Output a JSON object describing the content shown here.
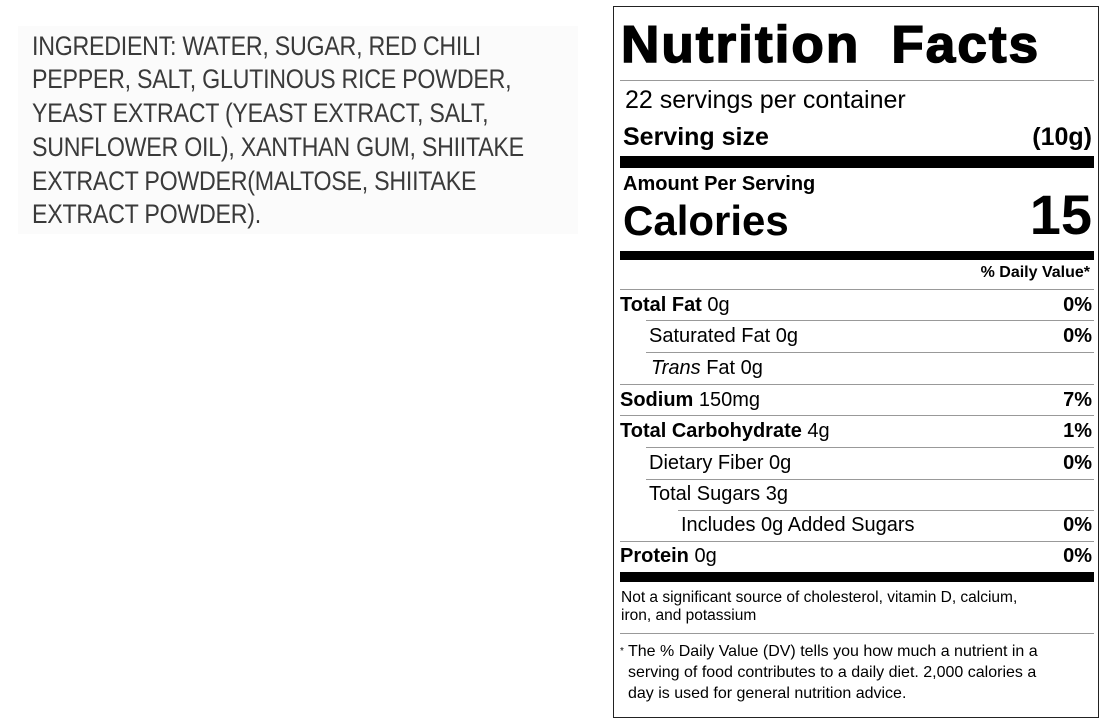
{
  "ingredients": {
    "lines": [
      "INGREDIENT: WATER, SUGAR, RED CHILI",
      "PEPPER, SALT, GLUTINOUS RICE POWDER,",
      "YEAST EXTRACT (YEAST EXTRACT, SALT,",
      "SUNFLOWER OIL), XANTHAN GUM, SHIITAKE",
      "EXTRACT POWDER(MALTOSE, SHIITAKE",
      "EXTRACT POWDER)."
    ]
  },
  "nutrition": {
    "title": "Nutrition Facts",
    "servings_per_container": "22 servings per container",
    "serving_size_label": "Serving size",
    "serving_size_value": "(10g)",
    "amount_per_serving": "Amount Per Serving",
    "calories_label": "Calories",
    "calories_value": "15",
    "daily_value_header": "% Daily Value*",
    "rows": [
      {
        "label": "Total Fat",
        "amount": " 0g",
        "dv": "0%"
      },
      {
        "label": "Saturated Fat 0g",
        "amount": "",
        "dv": "0%"
      },
      {
        "label": "Trans",
        "amount": " Fat 0g",
        "dv": ""
      },
      {
        "label": "Sodium",
        "amount": " 150mg",
        "dv": "7%"
      },
      {
        "label": "Total Carbohydrate",
        "amount": " 4g",
        "dv": "1%"
      },
      {
        "label": "Dietary Fiber 0g",
        "amount": "",
        "dv": "0%"
      },
      {
        "label": "Total Sugars 3g",
        "amount": "",
        "dv": ""
      },
      {
        "label": "Includes 0g Added Sugars",
        "amount": "",
        "dv": "0%"
      },
      {
        "label": "Protein",
        "amount": " 0g",
        "dv": "0%"
      }
    ],
    "not_significant": [
      "Not a significant source of cholesterol, vitamin D, calcium,",
      "iron, and potassium"
    ],
    "footnote_star": "*",
    "footnote": [
      "The % Daily Value (DV) tells you how much a nutrient in a",
      "serving of food contributes to a daily diet. 2,000 calories a",
      "day is used for general nutrition advice."
    ]
  }
}
